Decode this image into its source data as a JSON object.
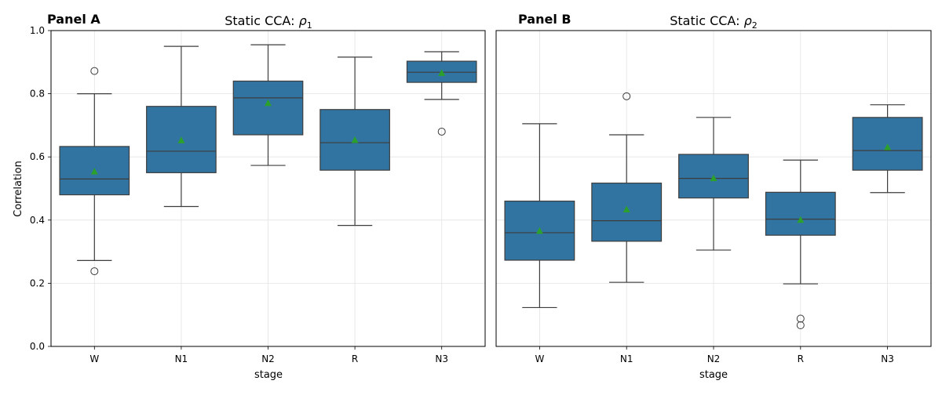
{
  "colors": {
    "box_fill": "#3274a1",
    "mean_marker": "#2ca02c",
    "line": "#3d3d3d"
  },
  "chart_data": [
    {
      "type": "box",
      "panel_label": "Panel A",
      "title_prefix": "Static CCA: ",
      "title_symbol": "ρ",
      "title_subscript": "1",
      "xlabel": "stage",
      "ylabel": "Correlation",
      "ylim": [
        0,
        1
      ],
      "yticks": [
        "0.0",
        "0.2",
        "0.4",
        "0.6",
        "0.8",
        "1.0"
      ],
      "grid": true,
      "categories": [
        "W",
        "N1",
        "N2",
        "R",
        "N3"
      ],
      "boxes": [
        {
          "q1": 0.48,
          "median": 0.53,
          "q3": 0.633,
          "whisker_low": 0.272,
          "whisker_high": 0.8,
          "mean": 0.553,
          "outliers": [
            0.872,
            0.238
          ]
        },
        {
          "q1": 0.55,
          "median": 0.618,
          "q3": 0.76,
          "whisker_low": 0.443,
          "whisker_high": 0.95,
          "mean": 0.652,
          "outliers": []
        },
        {
          "q1": 0.67,
          "median": 0.787,
          "q3": 0.84,
          "whisker_low": 0.573,
          "whisker_high": 0.955,
          "mean": 0.77,
          "outliers": []
        },
        {
          "q1": 0.558,
          "median": 0.645,
          "q3": 0.75,
          "whisker_low": 0.383,
          "whisker_high": 0.916,
          "mean": 0.653,
          "outliers": []
        },
        {
          "q1": 0.836,
          "median": 0.868,
          "q3": 0.903,
          "whisker_low": 0.782,
          "whisker_high": 0.933,
          "mean": 0.865,
          "outliers": [
            0.68
          ]
        }
      ]
    },
    {
      "type": "box",
      "panel_label": "Panel B",
      "title_prefix": "Static CCA: ",
      "title_symbol": "ρ",
      "title_subscript": "2",
      "xlabel": "stage",
      "ylabel": "",
      "ylim": [
        0,
        1
      ],
      "yticks": [],
      "grid": true,
      "categories": [
        "W",
        "N1",
        "N2",
        "R",
        "N3"
      ],
      "boxes": [
        {
          "q1": 0.273,
          "median": 0.36,
          "q3": 0.46,
          "whisker_low": 0.123,
          "whisker_high": 0.705,
          "mean": 0.365,
          "outliers": []
        },
        {
          "q1": 0.333,
          "median": 0.398,
          "q3": 0.517,
          "whisker_low": 0.203,
          "whisker_high": 0.67,
          "mean": 0.433,
          "outliers": [
            0.792
          ]
        },
        {
          "q1": 0.47,
          "median": 0.532,
          "q3": 0.608,
          "whisker_low": 0.305,
          "whisker_high": 0.725,
          "mean": 0.532,
          "outliers": []
        },
        {
          "q1": 0.352,
          "median": 0.403,
          "q3": 0.488,
          "whisker_low": 0.198,
          "whisker_high": 0.59,
          "mean": 0.4,
          "outliers": [
            0.088,
            0.067
          ]
        },
        {
          "q1": 0.558,
          "median": 0.62,
          "q3": 0.725,
          "whisker_low": 0.487,
          "whisker_high": 0.765,
          "mean": 0.63,
          "outliers": []
        }
      ]
    }
  ]
}
